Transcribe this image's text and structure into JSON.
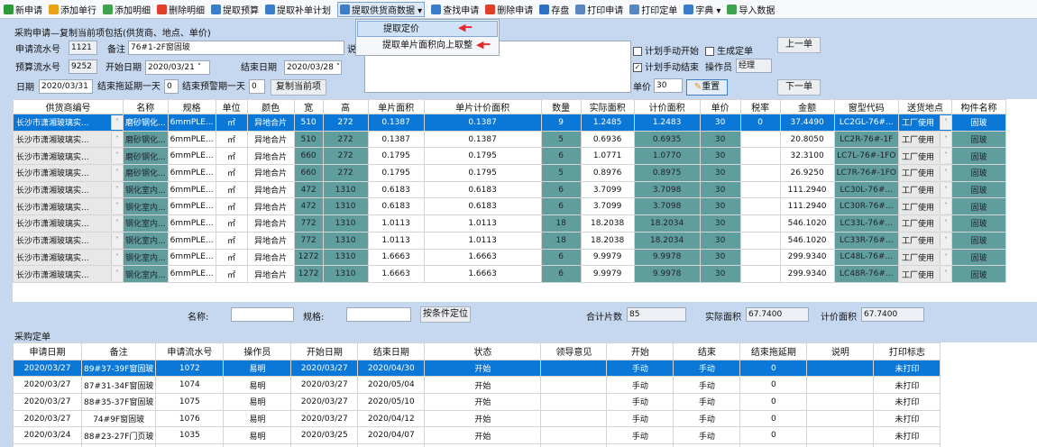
{
  "toolbar": [
    {
      "icon": "plus-circle-icon",
      "label": "新申请",
      "color": "#2d9a3a"
    },
    {
      "icon": "add-row-icon",
      "label": "添加单行",
      "color": "#e8a317"
    },
    {
      "icon": "add-detail-icon",
      "label": "添加明细",
      "color": "#3fa34d"
    },
    {
      "icon": "delete-x-icon",
      "label": "删除明细",
      "color": "#e0402a"
    },
    {
      "icon": "document-icon",
      "label": "提取预算",
      "color": "#3d7cc9"
    },
    {
      "icon": "document-icon",
      "label": "提取补单计划",
      "color": "#3d7cc9"
    },
    {
      "icon": "document-icon",
      "label": "提取供货商数据 ▾",
      "color": "#3d7cc9"
    },
    {
      "icon": "search-icon",
      "label": "查找申请",
      "color": "#3d7cc9"
    },
    {
      "icon": "delete-x-icon",
      "label": "删除申请",
      "color": "#e0402a"
    },
    {
      "icon": "save-icon",
      "label": "存盘",
      "color": "#2e6fc2"
    },
    {
      "icon": "printer-icon",
      "label": "打印申请",
      "color": "#5a86c0"
    },
    {
      "icon": "printer-icon",
      "label": "打印定单",
      "color": "#5a86c0"
    },
    {
      "icon": "dictionary-icon",
      "label": "字典 ▾",
      "color": "#3d7cc9"
    },
    {
      "icon": "import-icon",
      "label": "导入数据",
      "color": "#3fa34d"
    }
  ],
  "dropdown_menu": [
    "提取定价",
    "提取单片面积向上取整"
  ],
  "form": {
    "section_title": "采购申请—复制当前项包括(供货商、地点、单价)",
    "apply_no_label": "申请流水号",
    "apply_no": "1121",
    "remark_label": "备注",
    "remark": "76#1-2F窗固玻",
    "note_label": "说",
    "budget_no_label": "预算流水号",
    "budget_no": "9252",
    "start_date_label": "开始日期",
    "start_date": "2020/03/21",
    "end_date_label": "结束日期",
    "end_date": "2020/03/28",
    "date_label": "日期",
    "date": "2020/03/31",
    "delay_label": "结束拖延期一天",
    "delay": "0",
    "warn_label": "结束预警期一天",
    "warn": "0",
    "copy_button": "复制当前项",
    "plan_manual_start": "计划手动开始",
    "plan_manual_start_checked": false,
    "generate_order": "生成定单",
    "generate_order_checked": false,
    "plan_manual_end": "计划手动结束",
    "plan_manual_end_checked": true,
    "operator_label": "操作员",
    "operator": "经理",
    "price_label": "单价",
    "price": "30",
    "reset_button": "重置",
    "prev_button": "上一单",
    "next_button": "下一单"
  },
  "detail_grid": {
    "columns": [
      "供货商编号",
      "名称",
      "规格",
      "单位",
      "颜色",
      "宽",
      "高",
      "单片面积",
      "单片计价面积",
      "数量",
      "实际面积",
      "计价面积",
      "单价",
      "税率",
      "金额",
      "窗型代码",
      "送货地点",
      "构件名称"
    ],
    "rows": [
      [
        "长沙市潇湘玻璃实...",
        "磨砂钢化...",
        "6mmPLE...",
        "㎡",
        "异地合片",
        "510",
        "272",
        "0.1387",
        "0.1387",
        "9",
        "1.2485",
        "1.2483",
        "30",
        "0",
        "37.4490",
        "LC2GL-76#...",
        "工厂使用",
        "固玻"
      ],
      [
        "长沙市潇湘玻璃实...",
        "磨砂钢化...",
        "6mmPLE...",
        "㎡",
        "异地合片",
        "510",
        "272",
        "0.1387",
        "0.1387",
        "5",
        "0.6936",
        "0.6935",
        "30",
        "",
        "20.8050",
        "LC2R-76#-1F",
        "工厂使用",
        "固玻"
      ],
      [
        "长沙市潇湘玻璃实...",
        "磨砂钢化...",
        "6mmPLE...",
        "㎡",
        "异地合片",
        "660",
        "272",
        "0.1795",
        "0.1795",
        "6",
        "1.0771",
        "1.0770",
        "30",
        "",
        "32.3100",
        "LC7L-76#-1FO",
        "工厂使用",
        "固玻"
      ],
      [
        "长沙市潇湘玻璃实...",
        "磨砂钢化...",
        "6mmPLE...",
        "㎡",
        "异地合片",
        "660",
        "272",
        "0.1795",
        "0.1795",
        "5",
        "0.8976",
        "0.8975",
        "30",
        "",
        "26.9250",
        "LC7R-76#-1FO",
        "工厂使用",
        "固玻"
      ],
      [
        "长沙市潇湘玻璃实...",
        "钢化室内...",
        "6mmPLE...",
        "㎡",
        "异地合片",
        "472",
        "1310",
        "0.6183",
        "0.6183",
        "6",
        "3.7099",
        "3.7098",
        "30",
        "",
        "111.2940",
        "LC30L-76#...",
        "工厂使用",
        "固玻"
      ],
      [
        "长沙市潇湘玻璃实...",
        "钢化室内...",
        "6mmPLE...",
        "㎡",
        "异地合片",
        "472",
        "1310",
        "0.6183",
        "0.6183",
        "6",
        "3.7099",
        "3.7098",
        "30",
        "",
        "111.2940",
        "LC30R-76#...",
        "工厂使用",
        "固玻"
      ],
      [
        "长沙市潇湘玻璃实...",
        "钢化室内...",
        "6mmPLE...",
        "㎡",
        "异地合片",
        "772",
        "1310",
        "1.0113",
        "1.0113",
        "18",
        "18.2038",
        "18.2034",
        "30",
        "",
        "546.1020",
        "LC33L-76#...",
        "工厂使用",
        "固玻"
      ],
      [
        "长沙市潇湘玻璃实...",
        "钢化室内...",
        "6mmPLE...",
        "㎡",
        "异地合片",
        "772",
        "1310",
        "1.0113",
        "1.0113",
        "18",
        "18.2038",
        "18.2034",
        "30",
        "",
        "546.1020",
        "LC33R-76#...",
        "工厂使用",
        "固玻"
      ],
      [
        "长沙市潇湘玻璃实...",
        "钢化室内...",
        "6mmPLE...",
        "㎡",
        "异地合片",
        "1272",
        "1310",
        "1.6663",
        "1.6663",
        "6",
        "9.9979",
        "9.9978",
        "30",
        "",
        "299.9340",
        "LC48L-76#...",
        "工厂使用",
        "固玻"
      ],
      [
        "长沙市潇湘玻璃实...",
        "钢化室内...",
        "6mmPLE...",
        "㎡",
        "异地合片",
        "1272",
        "1310",
        "1.6663",
        "1.6663",
        "6",
        "9.9979",
        "9.9978",
        "30",
        "",
        "299.9340",
        "LC48R-76#...",
        "工厂使用",
        "固玻"
      ]
    ]
  },
  "filter": {
    "name_label": "名称:",
    "name": "",
    "spec_label": "规格:",
    "spec": "",
    "locate_button": "按条件定位",
    "total_pieces_label": "合计片数",
    "total_pieces": "85",
    "actual_area_label": "实际面积",
    "actual_area": "67.7400",
    "priced_area_label": "计价面积",
    "priced_area": "67.7400"
  },
  "orders": {
    "title": "采购定单",
    "columns": [
      "申请日期",
      "备注",
      "申请流水号",
      "操作员",
      "开始日期",
      "结束日期",
      "状态",
      "领导意见",
      "开始",
      "结束",
      "结束拖延期",
      "说明",
      "打印标志"
    ],
    "rows": [
      [
        "2020/03/27",
        "89#37-39F窗固玻",
        "1072",
        "易明",
        "2020/03/27",
        "2020/04/30",
        "开始",
        "",
        "手动",
        "手动",
        "0",
        "",
        "未打印"
      ],
      [
        "2020/03/27",
        "87#31-34F窗固玻",
        "1074",
        "易明",
        "2020/03/27",
        "2020/05/04",
        "开始",
        "",
        "手动",
        "手动",
        "0",
        "",
        "未打印"
      ],
      [
        "2020/03/27",
        "88#35-37F窗固玻",
        "1075",
        "易明",
        "2020/03/27",
        "2020/05/10",
        "开始",
        "",
        "手动",
        "手动",
        "0",
        "",
        "未打印"
      ],
      [
        "2020/03/27",
        "74#9F窗固玻",
        "1076",
        "易明",
        "2020/03/27",
        "2020/04/12",
        "开始",
        "",
        "手动",
        "手动",
        "0",
        "",
        "未打印"
      ],
      [
        "2020/03/24",
        "88#23-27F门页玻",
        "1035",
        "易明",
        "2020/03/25",
        "2020/04/07",
        "开始",
        "",
        "手动",
        "手动",
        "0",
        "",
        "未打印"
      ]
    ]
  }
}
